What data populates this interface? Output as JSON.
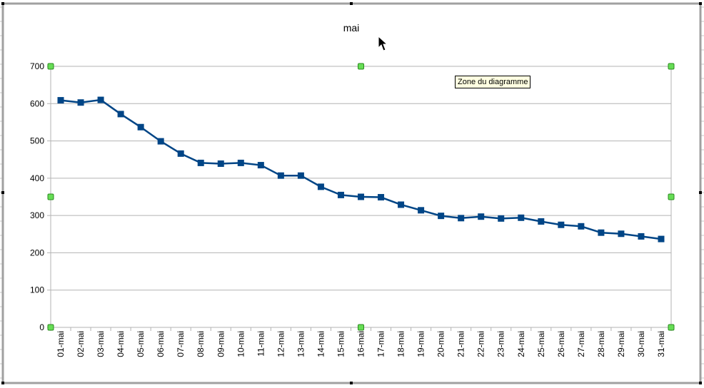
{
  "chart_data": {
    "type": "line",
    "title": "mai",
    "xlabel": "",
    "ylabel": "",
    "categories": [
      "01-mai",
      "02-mai",
      "03-mai",
      "04-mai",
      "05-mai",
      "06-mai",
      "07-mai",
      "08-mai",
      "09-mai",
      "10-mai",
      "11-mai",
      "12-mai",
      "13-mai",
      "14-mai",
      "15-mai",
      "16-mai",
      "17-mai",
      "18-mai",
      "19-mai",
      "20-mai",
      "21-mai",
      "22-mai",
      "23-mai",
      "24-mai",
      "25-mai",
      "26-mai",
      "27-mai",
      "28-mai",
      "29-mai",
      "30-mai",
      "31-mai"
    ],
    "series": [
      {
        "values": [
          609,
          603,
          610,
          572,
          537,
          499,
          466,
          441,
          439,
          441,
          435,
          407,
          407,
          377,
          355,
          350,
          349,
          329,
          314,
          299,
          293,
          297,
          292,
          294,
          284,
          275,
          271,
          254,
          251,
          244,
          237
        ],
        "color": "#004586"
      }
    ],
    "ylim": [
      0,
      700
    ],
    "yticks": [
      0,
      100,
      200,
      300,
      400,
      500,
      600,
      700
    ],
    "grid": true,
    "legend": "none"
  },
  "tooltip": {
    "text": "Zone du diagramme"
  }
}
